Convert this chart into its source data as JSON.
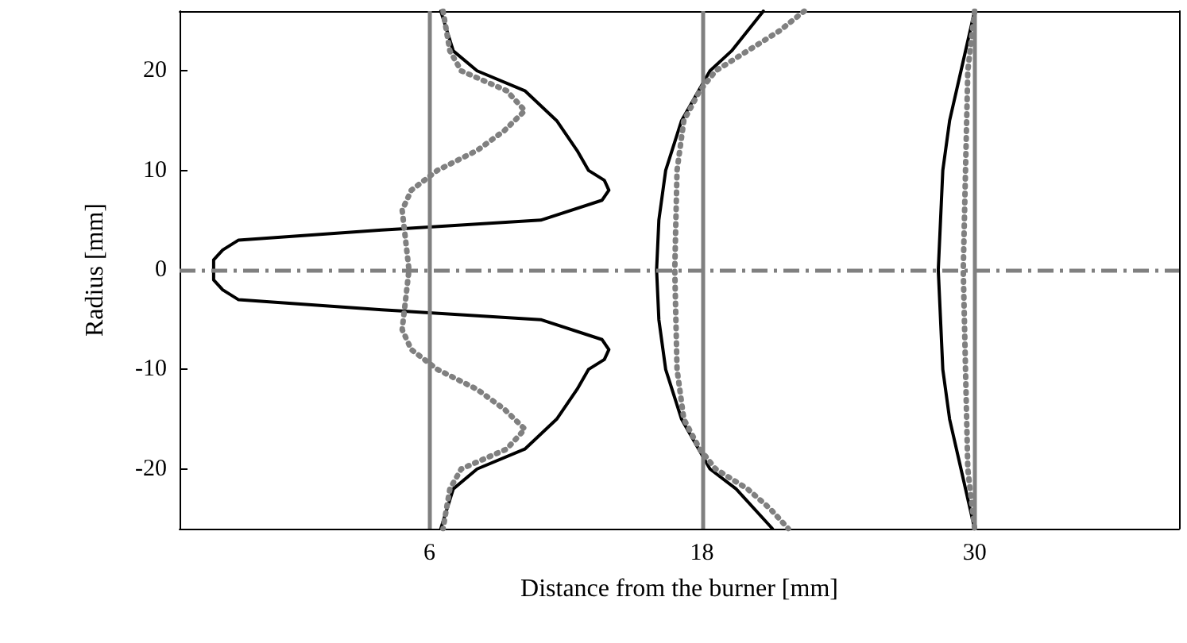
{
  "chart_data": {
    "type": "line",
    "xlabel": "Distance from the burner [mm]",
    "ylabel": "Radius [mm]",
    "xlim": [
      -5,
      39
    ],
    "ylim": [
      -26,
      26
    ],
    "xticks": [
      6,
      18,
      30
    ],
    "yticks": [
      -20,
      -10,
      0,
      10,
      20
    ],
    "grid": false,
    "marker": "none",
    "series": [
      {
        "color": "#000000",
        "line_style": "solid",
        "x": [
          6.5,
          7.05,
          8.1,
          10.2,
          11.6,
          12.5,
          13.0,
          13.7,
          13.9,
          13.6,
          10.9,
          3.9,
          -2.4,
          -3.1,
          -3.5,
          -3.5,
          -3.5,
          -3.1,
          -2.4,
          3.9,
          10.9,
          13.6,
          13.9,
          13.7,
          13.0,
          12.5,
          11.6,
          10.2,
          8.1,
          7.05,
          6.5
        ],
        "values": [
          26,
          22,
          20,
          18,
          15,
          12,
          10,
          9,
          8,
          7,
          5,
          4,
          3,
          2,
          1,
          0,
          -1,
          -2,
          -3,
          -4,
          -5,
          -7,
          -8,
          -9,
          -10,
          -12,
          -15,
          -18,
          -20,
          -22,
          -26
        ]
      },
      {
        "color": "#808080",
        "line_style": "dotted",
        "x": [
          6.6,
          6.9,
          7.4,
          9.4,
          10.2,
          9.3,
          8.1,
          6.35,
          5.2,
          4.8,
          4.9,
          5.1,
          4.9,
          4.8,
          5.2,
          6.35,
          8.1,
          9.3,
          10.2,
          9.4,
          7.4,
          6.9,
          6.6
        ],
        "values": [
          26,
          22,
          20,
          18,
          16,
          14,
          12,
          10,
          8,
          6,
          4,
          0,
          -4,
          -6,
          -8,
          -10,
          -12,
          -14,
          -16,
          -18,
          -20,
          -22,
          -26
        ]
      },
      {
        "color": "#000000",
        "line_style": "solid",
        "x": [
          20.7,
          19.3,
          18.35,
          17.1,
          16.4,
          16.1,
          16.0,
          16.1,
          16.4,
          17.1,
          18.35,
          19.5,
          21.1
        ],
        "values": [
          26,
          22,
          20,
          15,
          10,
          5,
          0,
          -5,
          -10,
          -15,
          -20,
          -22,
          -26
        ]
      },
      {
        "color": "#808080",
        "line_style": "dotted",
        "x": [
          22.5,
          21.4,
          20.0,
          18.6,
          17.9,
          17.2,
          16.9,
          16.8,
          16.9,
          17.2,
          17.9,
          18.6,
          20.0,
          21.0,
          21.8
        ],
        "values": [
          26,
          24,
          22,
          20,
          18,
          15,
          10,
          0,
          -10,
          -15,
          -18,
          -20,
          -22,
          -24,
          -26
        ]
      },
      {
        "color": "#000000",
        "line_style": "solid",
        "x": [
          30.0,
          29.4,
          28.9,
          28.6,
          28.5,
          28.4,
          28.5,
          28.6,
          28.9,
          29.4,
          30.0
        ],
        "values": [
          26,
          20,
          15,
          10,
          5,
          0,
          -5,
          -10,
          -15,
          -20,
          -26
        ]
      },
      {
        "color": "#808080",
        "line_style": "dotted",
        "x": [
          30.0,
          29.7,
          29.6,
          29.5,
          29.6,
          29.7,
          30.0
        ],
        "values": [
          26,
          20,
          10,
          0,
          -10,
          -20,
          -26
        ]
      }
    ],
    "ref_lines": [
      {
        "axis": "x",
        "value": 6,
        "color": "#808080",
        "line_style": "solid"
      },
      {
        "axis": "x",
        "value": 18,
        "color": "#808080",
        "line_style": "solid"
      },
      {
        "axis": "x",
        "value": 30,
        "color": "#808080",
        "line_style": "solid"
      },
      {
        "axis": "y",
        "value": 0,
        "color": "#808080",
        "line_style": "dashed"
      }
    ]
  }
}
